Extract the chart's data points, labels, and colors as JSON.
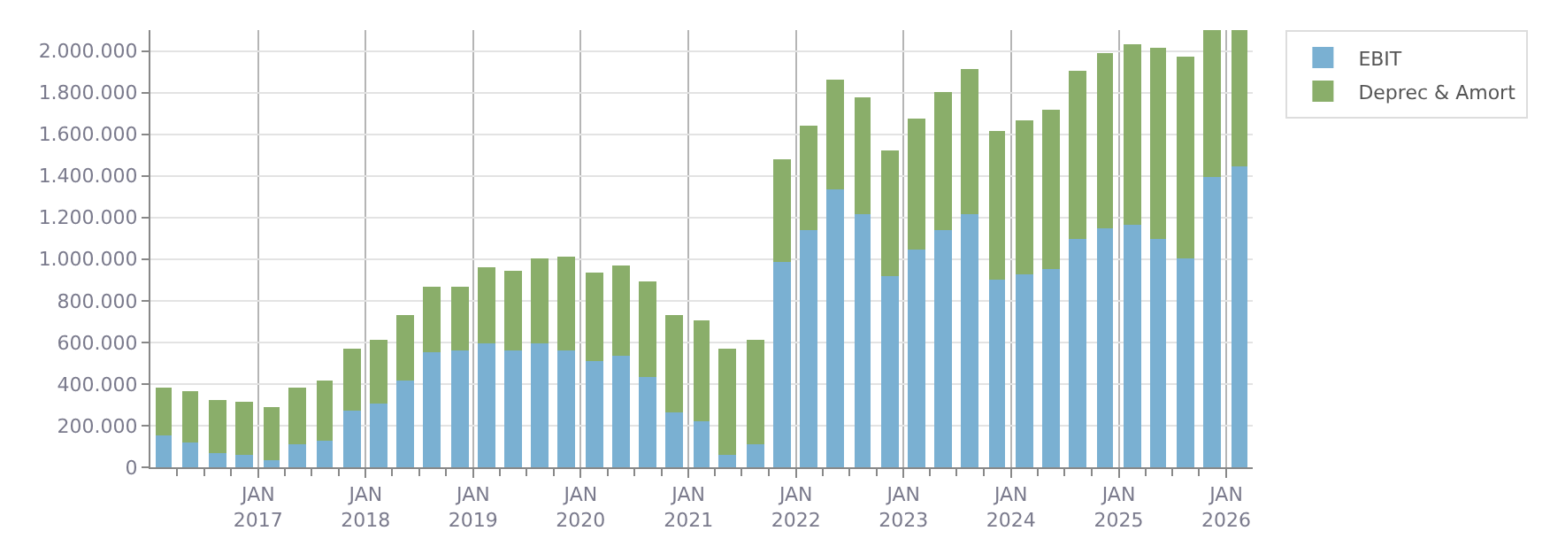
{
  "chart_data": {
    "type": "bar",
    "stacked": true,
    "x": [
      "2016-02-15",
      "2016-05-15",
      "2016-08-15",
      "2016-11-15",
      "2017-02-15",
      "2017-05-15",
      "2017-08-15",
      "2017-11-15",
      "2018-02-15",
      "2018-05-15",
      "2018-08-15",
      "2018-11-15",
      "2019-02-15",
      "2019-05-15",
      "2019-08-15",
      "2019-11-15",
      "2020-02-15",
      "2020-05-15",
      "2020-08-15",
      "2020-11-15",
      "2021-02-15",
      "2021-05-15",
      "2021-08-15",
      "2021-11-15",
      "2022-02-15",
      "2022-05-15",
      "2022-08-15",
      "2022-11-15",
      "2023-02-15",
      "2023-05-15",
      "2023-08-15",
      "2023-11-15",
      "2024-02-15",
      "2024-05-15",
      "2024-08-15",
      "2024-11-15",
      "2025-02-15",
      "2025-05-15",
      "2025-08-15",
      "2025-11-15",
      "2026-02-15"
    ],
    "series": [
      {
        "name": "EBIT",
        "color": "#7ab0d2",
        "values": [
          155000,
          123000,
          64000,
          59000,
          32000,
          107000,
          129000,
          268000,
          306000,
          413000,
          550000,
          558000,
          595000,
          558000,
          595000,
          563000,
          509000,
          534000,
          437000,
          260000,
          223000,
          62000,
          110000,
          984000,
          1139000,
          1332000,
          1220000,
          920000,
          1043000,
          1139000,
          1220000,
          903000,
          928000,
          952000,
          1097000,
          1145000,
          1161000,
          1097000,
          1000000,
          1394000,
          1442000
        ]
      },
      {
        "name": "Deprec & Amort",
        "color": "#8aae6a",
        "values": [
          226000,
          242000,
          258000,
          257000,
          260000,
          274000,
          284000,
          298000,
          308000,
          314000,
          313000,
          313000,
          365000,
          386000,
          405000,
          453000,
          427000,
          434000,
          458000,
          467000,
          479000,
          504000,
          504000,
          499000,
          504000,
          528000,
          560000,
          603000,
          633000,
          665000,
          697000,
          716000,
          740000,
          764000,
          804000,
          844000,
          868000,
          916000,
          973000,
          706000,
          658000
        ]
      }
    ],
    "xlim": [
      "2016-01-01",
      "2026-04-01"
    ],
    "xticks": [
      {
        "value": "2016-04-01",
        "label": null
      },
      {
        "value": "2016-07-01",
        "label": null
      },
      {
        "value": "2016-10-01",
        "label": null
      },
      {
        "value": "2017-01-01",
        "label": "JAN\n2017"
      },
      {
        "value": "2017-04-01",
        "label": null
      },
      {
        "value": "2017-07-01",
        "label": null
      },
      {
        "value": "2017-10-01",
        "label": null
      },
      {
        "value": "2018-01-01",
        "label": "JAN\n2018"
      },
      {
        "value": "2018-04-01",
        "label": null
      },
      {
        "value": "2018-07-01",
        "label": null
      },
      {
        "value": "2018-10-01",
        "label": null
      },
      {
        "value": "2019-01-01",
        "label": "JAN\n2019"
      },
      {
        "value": "2019-04-01",
        "label": null
      },
      {
        "value": "2019-07-01",
        "label": null
      },
      {
        "value": "2019-10-01",
        "label": null
      },
      {
        "value": "2020-01-01",
        "label": "JAN\n2020"
      },
      {
        "value": "2020-04-01",
        "label": null
      },
      {
        "value": "2020-07-01",
        "label": null
      },
      {
        "value": "2020-10-01",
        "label": null
      },
      {
        "value": "2021-01-01",
        "label": "JAN\n2021"
      },
      {
        "value": "2021-04-01",
        "label": null
      },
      {
        "value": "2021-07-01",
        "label": null
      },
      {
        "value": "2021-10-01",
        "label": null
      },
      {
        "value": "2022-01-01",
        "label": "JAN\n2022"
      },
      {
        "value": "2022-04-01",
        "label": null
      },
      {
        "value": "2022-07-01",
        "label": null
      },
      {
        "value": "2022-10-01",
        "label": null
      },
      {
        "value": "2023-01-01",
        "label": "JAN\n2023"
      },
      {
        "value": "2023-04-01",
        "label": null
      },
      {
        "value": "2023-07-01",
        "label": null
      },
      {
        "value": "2023-10-01",
        "label": null
      },
      {
        "value": "2024-01-01",
        "label": "JAN\n2024"
      },
      {
        "value": "2024-04-01",
        "label": null
      },
      {
        "value": "2024-07-01",
        "label": null
      },
      {
        "value": "2024-10-01",
        "label": null
      },
      {
        "value": "2025-01-01",
        "label": "JAN\n2025"
      },
      {
        "value": "2025-04-01",
        "label": null
      },
      {
        "value": "2025-07-01",
        "label": null
      },
      {
        "value": "2025-10-01",
        "label": null
      },
      {
        "value": "2026-01-01",
        "label": "JAN\n2026"
      }
    ],
    "ylim": [
      0,
      2100000
    ],
    "yticks": [
      0,
      {
        "value": 200000,
        "label": "200.000"
      },
      {
        "value": 400000,
        "label": "400.000"
      },
      {
        "value": 600000,
        "label": "600.000"
      },
      {
        "value": 800000,
        "label": "800.000"
      },
      {
        "value": 1000000,
        "label": "1.000.000"
      },
      {
        "value": 1200000,
        "label": "1.200.000"
      },
      {
        "value": 1400000,
        "label": "1.400.000"
      },
      {
        "value": 1600000,
        "label": "1.600.000"
      },
      {
        "value": 1800000,
        "label": "1.800.000"
      },
      {
        "value": 2000000,
        "label": "2.000.000"
      }
    ],
    "grid": true,
    "legend": "top right"
  }
}
